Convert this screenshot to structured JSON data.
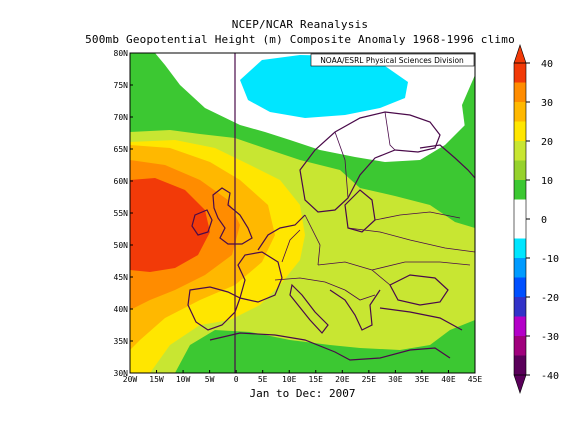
{
  "title_line1": "NCEP/NCAR Reanalysis",
  "title_line2": "500mb Geopotential Height (m) Composite Anomaly 1968-1996 climo",
  "credit": "NOAA/ESRL Physical Sciences Division",
  "date_range": "Jan to Dec: 2007",
  "lat_labels": [
    "80N",
    "75N",
    "70N",
    "65N",
    "60N",
    "55N",
    "50N",
    "45N",
    "40N",
    "35N",
    "30N"
  ],
  "lon_labels": [
    "20W",
    "15W",
    "10W",
    "5W",
    "0",
    "5E",
    "10E",
    "15E",
    "20E",
    "25E",
    "30E",
    "35E",
    "40E",
    "45E"
  ],
  "colorbar": {
    "labels": [
      "40",
      "30",
      "20",
      "10",
      "0",
      "-10",
      "-20",
      "-30",
      "-40"
    ],
    "colors": [
      "#f23a08",
      "#ff8c00",
      "#ffb800",
      "#ffe600",
      "#c8e632",
      "#96d22d",
      "#3cc832",
      "#ffffff",
      "#ffffff",
      "#00e6ff",
      "#009bff",
      "#0050ff",
      "#3232c8",
      "#b400c8",
      "#a0007d",
      "#5a005a"
    ]
  },
  "contour_colors": {
    "dark_red": "#f23a08",
    "orange": "#ff8c00",
    "light_orange": "#ffb800",
    "yellow": "#ffe600",
    "yellow_green": "#c8e632",
    "green": "#3cc832",
    "white": "#ffffff",
    "cyan": "#00e6ff"
  }
}
